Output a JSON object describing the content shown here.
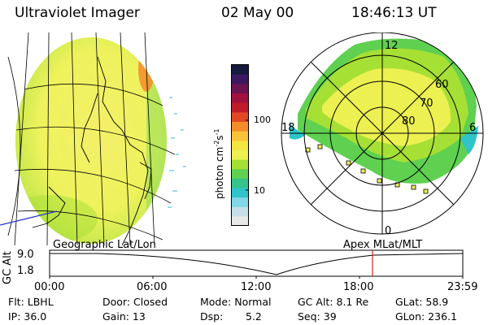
{
  "header": {
    "title": "Ultraviolet Imager",
    "date": "02 May 00",
    "time": "18:46:13 UT"
  },
  "colorbar": {
    "unit": "photon cm",
    "unit_sup1": "-2",
    "unit_mid": "s",
    "unit_sup2": "-1",
    "ticks": [
      "100",
      "10"
    ],
    "colors": [
      "#e8e8e8",
      "#c6dfe6",
      "#82d6e6",
      "#2ec4c8",
      "#35c48c",
      "#5fd050",
      "#a6e034",
      "#ecf050",
      "#f2e640",
      "#f9c23a",
      "#f58c2a",
      "#e04826",
      "#c01c2a",
      "#a2103e",
      "#6c1452",
      "#3c1860",
      "#141a40"
    ]
  },
  "polar": {
    "labels": {
      "noon": "12",
      "midnight": "0",
      "dawn": "6",
      "dusk": "18",
      "lat60": "60",
      "lat70": "70",
      "lat80": "80"
    }
  },
  "timeline": {
    "left_label": "Geographic Lat/Lon",
    "right_label": "Apex MLat/MLT",
    "y_axis": "GC Alt",
    "y_ticks": [
      "9.0",
      "1.8"
    ],
    "x_ticks": [
      "00:00",
      "06:00",
      "12:00",
      "18:00",
      "23:59"
    ],
    "current_time": "18:46"
  },
  "info": {
    "row1": {
      "flt": "Flt: LBHL",
      "door": "Door: Closed",
      "mode": "Mode: Normal",
      "gcalt": "GC Alt: 8.1 Re",
      "glat": "GLat: 58.9"
    },
    "row2": {
      "ip": "IP: 36.0",
      "gain": "Gain: 13",
      "dsp_label": "Dsp:",
      "dsp_value": "5.2",
      "seq": "Seq: 39",
      "glon": "GLon: 236.1"
    }
  }
}
